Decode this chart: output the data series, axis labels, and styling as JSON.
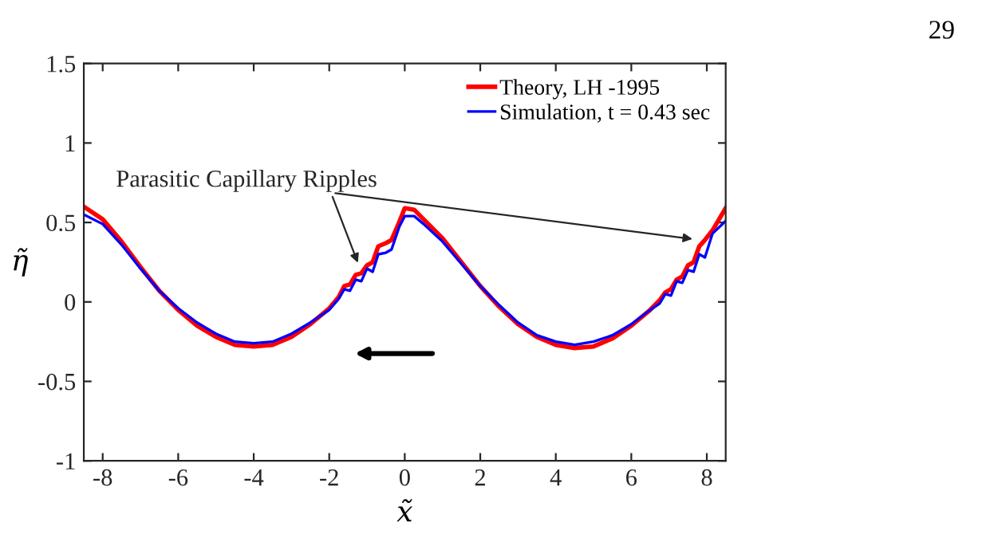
{
  "chart_data": {
    "type": "line",
    "xlabel": "x̃",
    "ylabel": "η̃",
    "xlim": [
      -8.5,
      8.5
    ],
    "xticks": [
      {
        "value": -8,
        "label": "-8"
      },
      {
        "value": -6,
        "label": "-6"
      },
      {
        "value": -4,
        "label": "-4"
      },
      {
        "value": -2,
        "label": "-2"
      },
      0,
      2,
      4,
      6,
      8
    ],
    "ylim": [
      -1,
      1.5
    ],
    "yticks": [
      {
        "value": -1,
        "label": "-1"
      },
      {
        "value": -0.5,
        "label": "-0.5"
      },
      0,
      0.5,
      1,
      1.5
    ],
    "series": [
      {
        "name": "Theory, LH -1995",
        "color": "#ff0000",
        "x": [
          -8.5,
          -8,
          -7.5,
          -7,
          -6.5,
          -6,
          -5.5,
          -5,
          -4.5,
          -4,
          -3.5,
          -3,
          -2.5,
          -2,
          -1.75,
          -1.6,
          -1.45,
          -1.3,
          -1.15,
          -1.0,
          -0.85,
          -0.7,
          -0.5,
          -0.35,
          -0.15,
          0,
          0.25,
          0.5,
          1,
          1.5,
          2,
          2.5,
          3,
          3.5,
          4,
          4.5,
          5,
          5.5,
          6,
          6.5,
          6.75,
          6.9,
          7.05,
          7.2,
          7.35,
          7.5,
          7.65,
          7.8,
          7.95,
          8.15,
          8.5
        ],
        "values": [
          0.6,
          0.52,
          0.38,
          0.22,
          0.07,
          -0.05,
          -0.15,
          -0.22,
          -0.27,
          -0.28,
          -0.27,
          -0.22,
          -0.14,
          -0.04,
          0.03,
          0.1,
          0.11,
          0.17,
          0.18,
          0.23,
          0.25,
          0.35,
          0.37,
          0.39,
          0.5,
          0.59,
          0.58,
          0.52,
          0.4,
          0.25,
          0.1,
          -0.03,
          -0.14,
          -0.22,
          -0.27,
          -0.29,
          -0.28,
          -0.23,
          -0.15,
          -0.05,
          0.01,
          0.06,
          0.08,
          0.14,
          0.16,
          0.23,
          0.25,
          0.35,
          0.39,
          0.45,
          0.59
        ]
      },
      {
        "name": "Simulation, t = 0.43 sec",
        "color": "#0000ff",
        "x": [
          -8.5,
          -8,
          -7.5,
          -7,
          -6.5,
          -6,
          -5.5,
          -5,
          -4.5,
          -4,
          -3.5,
          -3,
          -2.5,
          -2,
          -1.75,
          -1.6,
          -1.45,
          -1.3,
          -1.15,
          -1.0,
          -0.85,
          -0.7,
          -0.5,
          -0.35,
          -0.15,
          0,
          0.25,
          0.5,
          1,
          1.5,
          2,
          2.5,
          3,
          3.5,
          4,
          4.5,
          5,
          5.5,
          6,
          6.5,
          6.75,
          6.9,
          7.05,
          7.2,
          7.35,
          7.5,
          7.65,
          7.8,
          7.95,
          8.15,
          8.5
        ],
        "values": [
          0.55,
          0.49,
          0.36,
          0.21,
          0.07,
          -0.04,
          -0.13,
          -0.2,
          -0.25,
          -0.26,
          -0.25,
          -0.2,
          -0.13,
          -0.05,
          0.02,
          0.08,
          0.07,
          0.14,
          0.13,
          0.21,
          0.19,
          0.3,
          0.31,
          0.33,
          0.47,
          0.54,
          0.54,
          0.49,
          0.38,
          0.24,
          0.1,
          -0.02,
          -0.13,
          -0.21,
          -0.25,
          -0.27,
          -0.25,
          -0.21,
          -0.14,
          -0.05,
          -0.01,
          0.05,
          0.04,
          0.13,
          0.12,
          0.2,
          0.19,
          0.3,
          0.28,
          0.43,
          0.51
        ]
      }
    ],
    "legend": "top right",
    "grid": false,
    "marker": "none",
    "line_style": "solid",
    "annotations": [
      {
        "text": "Parasitic Capillary Ripples",
        "x": -1.2,
        "y": 0.22
      },
      "29"
    ]
  }
}
